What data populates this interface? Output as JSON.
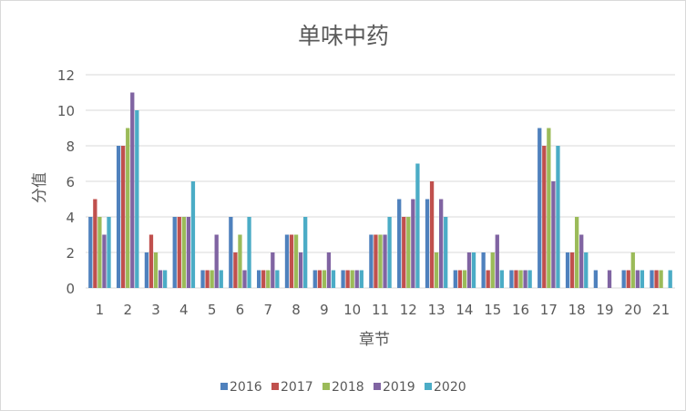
{
  "chart_data": {
    "type": "bar",
    "title": "单味中药",
    "xlabel": "章节",
    "ylabel": "分值",
    "ylim": [
      0,
      12
    ],
    "yticks": [
      0,
      2,
      4,
      6,
      8,
      10,
      12
    ],
    "grid": true,
    "legend": "bottom",
    "categories": [
      "1",
      "2",
      "3",
      "4",
      "5",
      "6",
      "7",
      "8",
      "9",
      "10",
      "11",
      "12",
      "13",
      "14",
      "15",
      "16",
      "17",
      "18",
      "19",
      "20",
      "21"
    ],
    "series": [
      {
        "name": "2016",
        "color": "#4f81bd",
        "values": [
          4,
          8,
          2,
          4,
          1,
          4,
          1,
          3,
          1,
          1,
          3,
          5,
          5,
          1,
          2,
          1,
          9,
          2,
          1,
          1,
          1
        ]
      },
      {
        "name": "2017",
        "color": "#c0504d",
        "values": [
          5,
          8,
          3,
          4,
          1,
          2,
          1,
          3,
          1,
          1,
          3,
          4,
          6,
          1,
          1,
          1,
          8,
          2,
          0,
          1,
          1
        ]
      },
      {
        "name": "2018",
        "color": "#9bbb59",
        "values": [
          4,
          9,
          2,
          4,
          1,
          3,
          1,
          3,
          1,
          1,
          3,
          4,
          2,
          1,
          2,
          1,
          9,
          4,
          0,
          2,
          1
        ]
      },
      {
        "name": "2019",
        "color": "#8064a2",
        "values": [
          3,
          11,
          1,
          4,
          3,
          1,
          2,
          2,
          2,
          1,
          3,
          5,
          5,
          2,
          3,
          1,
          6,
          3,
          1,
          1,
          0
        ]
      },
      {
        "name": "2020",
        "color": "#4bacc6",
        "values": [
          4,
          10,
          1,
          6,
          1,
          4,
          1,
          4,
          1,
          1,
          4,
          7,
          4,
          2,
          1,
          1,
          8,
          2,
          0,
          1,
          1
        ]
      }
    ]
  }
}
